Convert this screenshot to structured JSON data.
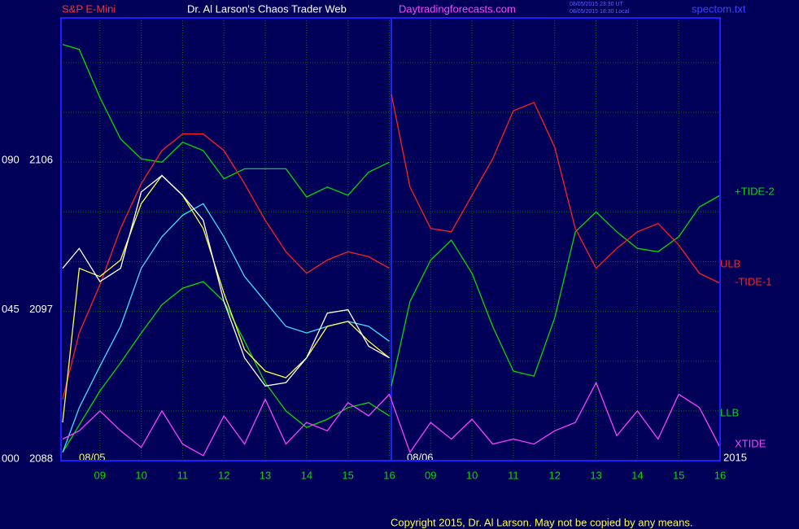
{
  "chart_data": {
    "type": "line",
    "header": {
      "left": "S&P E-Mini",
      "center": "Dr. Al Larson's Chaos Trader Web",
      "site": "Daytradingforecasts.com",
      "stamp_ut": "08/05/2015 23:30 UT",
      "stamp_local": "08/05/2015 18:30 Local",
      "file": "spectom.txt"
    },
    "date_labels": [
      "08/05",
      "08/06",
      "2015"
    ],
    "copyright": "Copyright 2015, Dr. Al Larson. May not be copied by any means.",
    "right_labels": [
      {
        "text": "+TIDE-2",
        "color": "#00dd00"
      },
      {
        "text": "ULB",
        "color": "#ff2020"
      },
      {
        "text": "-TIDE-1",
        "color": "#ff2020"
      },
      {
        "text": "LLB",
        "color": "#00dd00"
      },
      {
        "text": "XTIDE",
        "color": "#ff40ff"
      }
    ],
    "xlim": [
      8.06,
      24.0
    ],
    "xticks": [
      {
        "value": 9,
        "label": "09"
      },
      10,
      11,
      12,
      13,
      14,
      15,
      16,
      {
        "value": 17,
        "label": "09"
      },
      {
        "value": 18,
        "label": "10"
      },
      {
        "value": 19,
        "label": "11"
      },
      {
        "value": 20,
        "label": "12"
      },
      {
        "value": 21,
        "label": "13"
      },
      {
        "value": 22,
        "label": "14"
      },
      {
        "value": 23,
        "label": "15"
      },
      {
        "value": 24,
        "label": "16"
      }
    ],
    "ylim": [
      2088,
      2114.7
    ],
    "yticks": [
      2088,
      2097,
      2106
    ],
    "y2lim": [
      0,
      133.4
    ],
    "y2ticks": [
      {
        "value": 0,
        "label": "000"
      },
      {
        "value": 45,
        "label": "045"
      },
      {
        "value": 90,
        "label": "090"
      }
    ],
    "ygrid": [
      2091,
      2094,
      2097,
      2100,
      2103,
      2106,
      2109,
      2112
    ],
    "grid": true,
    "session_break": 16.05,
    "series": [
      {
        "color": "#00dd00",
        "x": [
          8.1,
          8.5,
          9,
          9.5,
          10,
          10.5,
          11,
          11.5,
          12,
          12.5,
          13,
          13.5,
          14,
          14.5,
          15,
          15.5,
          16
        ],
        "values": [
          2113.1,
          2112.8,
          2109.9,
          2107.4,
          2106.2,
          2106.0,
          2107.2,
          2106.7,
          2105.0,
          2105.6,
          2105.6,
          2105.6,
          2103.9,
          2104.5,
          2104.0,
          2105.4,
          2106.0
        ]
      },
      {
        "color": "#00dd00",
        "x": [
          8.1,
          9,
          9.5,
          10,
          10.5,
          11,
          11.5,
          12,
          12.5,
          13,
          13.5,
          14,
          14.5,
          15,
          15.5,
          16
        ],
        "values": [
          2088.5,
          2092.2,
          2093.9,
          2095.7,
          2097.4,
          2098.4,
          2098.8,
          2097.6,
          2095.2,
          2092.7,
          2091.0,
          2090.0,
          2090.5,
          2091.2,
          2091.5,
          2090.7
        ]
      },
      {
        "color": "#ff2020",
        "x": [
          8.1,
          8.5,
          9,
          9.5,
          10,
          10.5,
          11,
          11.5,
          12,
          12.5,
          13,
          13.5,
          14,
          14.5,
          15,
          15.5,
          16
        ],
        "values": [
          2091.7,
          2095.7,
          2098.6,
          2102.0,
          2104.7,
          2106.7,
          2107.7,
          2107.7,
          2106.7,
          2104.7,
          2102.5,
          2100.6,
          2099.3,
          2100.1,
          2100.6,
          2100.3,
          2099.6
        ]
      },
      {
        "color": "#40e0ff",
        "x": [
          8.1,
          8.5,
          9,
          9.5,
          10,
          10.5,
          11,
          11.5,
          12,
          12.5,
          13,
          13.5,
          14,
          14.5,
          15,
          15.5,
          16
        ],
        "values": [
          2088.5,
          2091.2,
          2093.7,
          2096.1,
          2099.6,
          2101.5,
          2102.8,
          2103.5,
          2101.5,
          2099.1,
          2097.6,
          2096.1,
          2095.7,
          2096.1,
          2096.4,
          2096.1,
          2095.2
        ]
      },
      {
        "color": "#ffff40",
        "x": [
          8.1,
          8.5,
          9,
          9.5,
          10,
          10.5,
          11,
          11.5,
          12,
          12.5,
          13,
          13.5,
          14,
          14.5,
          15,
          15.5,
          16
        ],
        "values": [
          2090.3,
          2099.6,
          2099.1,
          2100.1,
          2103.5,
          2105.2,
          2104.0,
          2102.0,
          2098.1,
          2094.7,
          2093.4,
          2093.0,
          2094.2,
          2096.1,
          2096.4,
          2095.2,
          2094.2
        ]
      },
      {
        "color": "#ffffff",
        "x": [
          8.1,
          8.5,
          9,
          9.5,
          10,
          10.5,
          11,
          11.5,
          12,
          12.5,
          13,
          13.5,
          14,
          14.5,
          15,
          15.5,
          16
        ],
        "values": [
          2099.6,
          2100.8,
          2098.8,
          2099.6,
          2104.2,
          2105.2,
          2104.0,
          2102.5,
          2097.6,
          2094.2,
          2092.5,
          2092.7,
          2094.2,
          2096.9,
          2097.1,
          2094.9,
          2094.2
        ]
      },
      {
        "color": "#00dd00",
        "x": [
          16.05,
          16.5,
          17,
          17.5,
          18,
          18.5,
          19,
          19.5,
          20,
          20.5,
          21,
          21.5,
          22,
          22.5,
          23,
          23.5,
          24
        ],
        "values": [
          2092.5,
          2097.6,
          2100.1,
          2101.3,
          2099.3,
          2096.1,
          2093.4,
          2093.1,
          2096.6,
          2101.8,
          2103.0,
          2101.8,
          2100.8,
          2100.6,
          2101.5,
          2103.3,
          2104.0
        ]
      },
      {
        "color": "#ff2020",
        "x": [
          16.05,
          16.5,
          17,
          17.5,
          18,
          18.5,
          19,
          19.5,
          20,
          20.5,
          21,
          21.5,
          22,
          22.5,
          23,
          23.5,
          24
        ],
        "values": [
          2110.1,
          2104.5,
          2102.0,
          2101.8,
          2104.0,
          2106.2,
          2109.1,
          2109.6,
          2106.9,
          2102.0,
          2099.6,
          2100.8,
          2101.8,
          2102.3,
          2101.0,
          2099.3,
          2098.7
        ]
      },
      {
        "color": "#ff40ff",
        "x": [
          8.1,
          8.5,
          9,
          9.5,
          10,
          10.5,
          11,
          11.5,
          12,
          12.5,
          13,
          13.5,
          14,
          14.5,
          15,
          15.5,
          16,
          16.5,
          17,
          17.5,
          18,
          18.5,
          19,
          19.5,
          20,
          20.5,
          21,
          21.5,
          22,
          22.5,
          23,
          23.5,
          24
        ],
        "values": [
          2089.3,
          2089.8,
          2091.0,
          2089.8,
          2088.8,
          2091.0,
          2089.0,
          2088.3,
          2090.7,
          2089.0,
          2091.7,
          2089.0,
          2090.3,
          2089.8,
          2091.5,
          2090.7,
          2092.0,
          2088.5,
          2090.3,
          2089.3,
          2090.5,
          2089.0,
          2089.3,
          2089.0,
          2089.8,
          2090.3,
          2092.7,
          2089.5,
          2091.0,
          2089.3,
          2092.0,
          2091.2,
          2088.8
        ]
      }
    ]
  }
}
